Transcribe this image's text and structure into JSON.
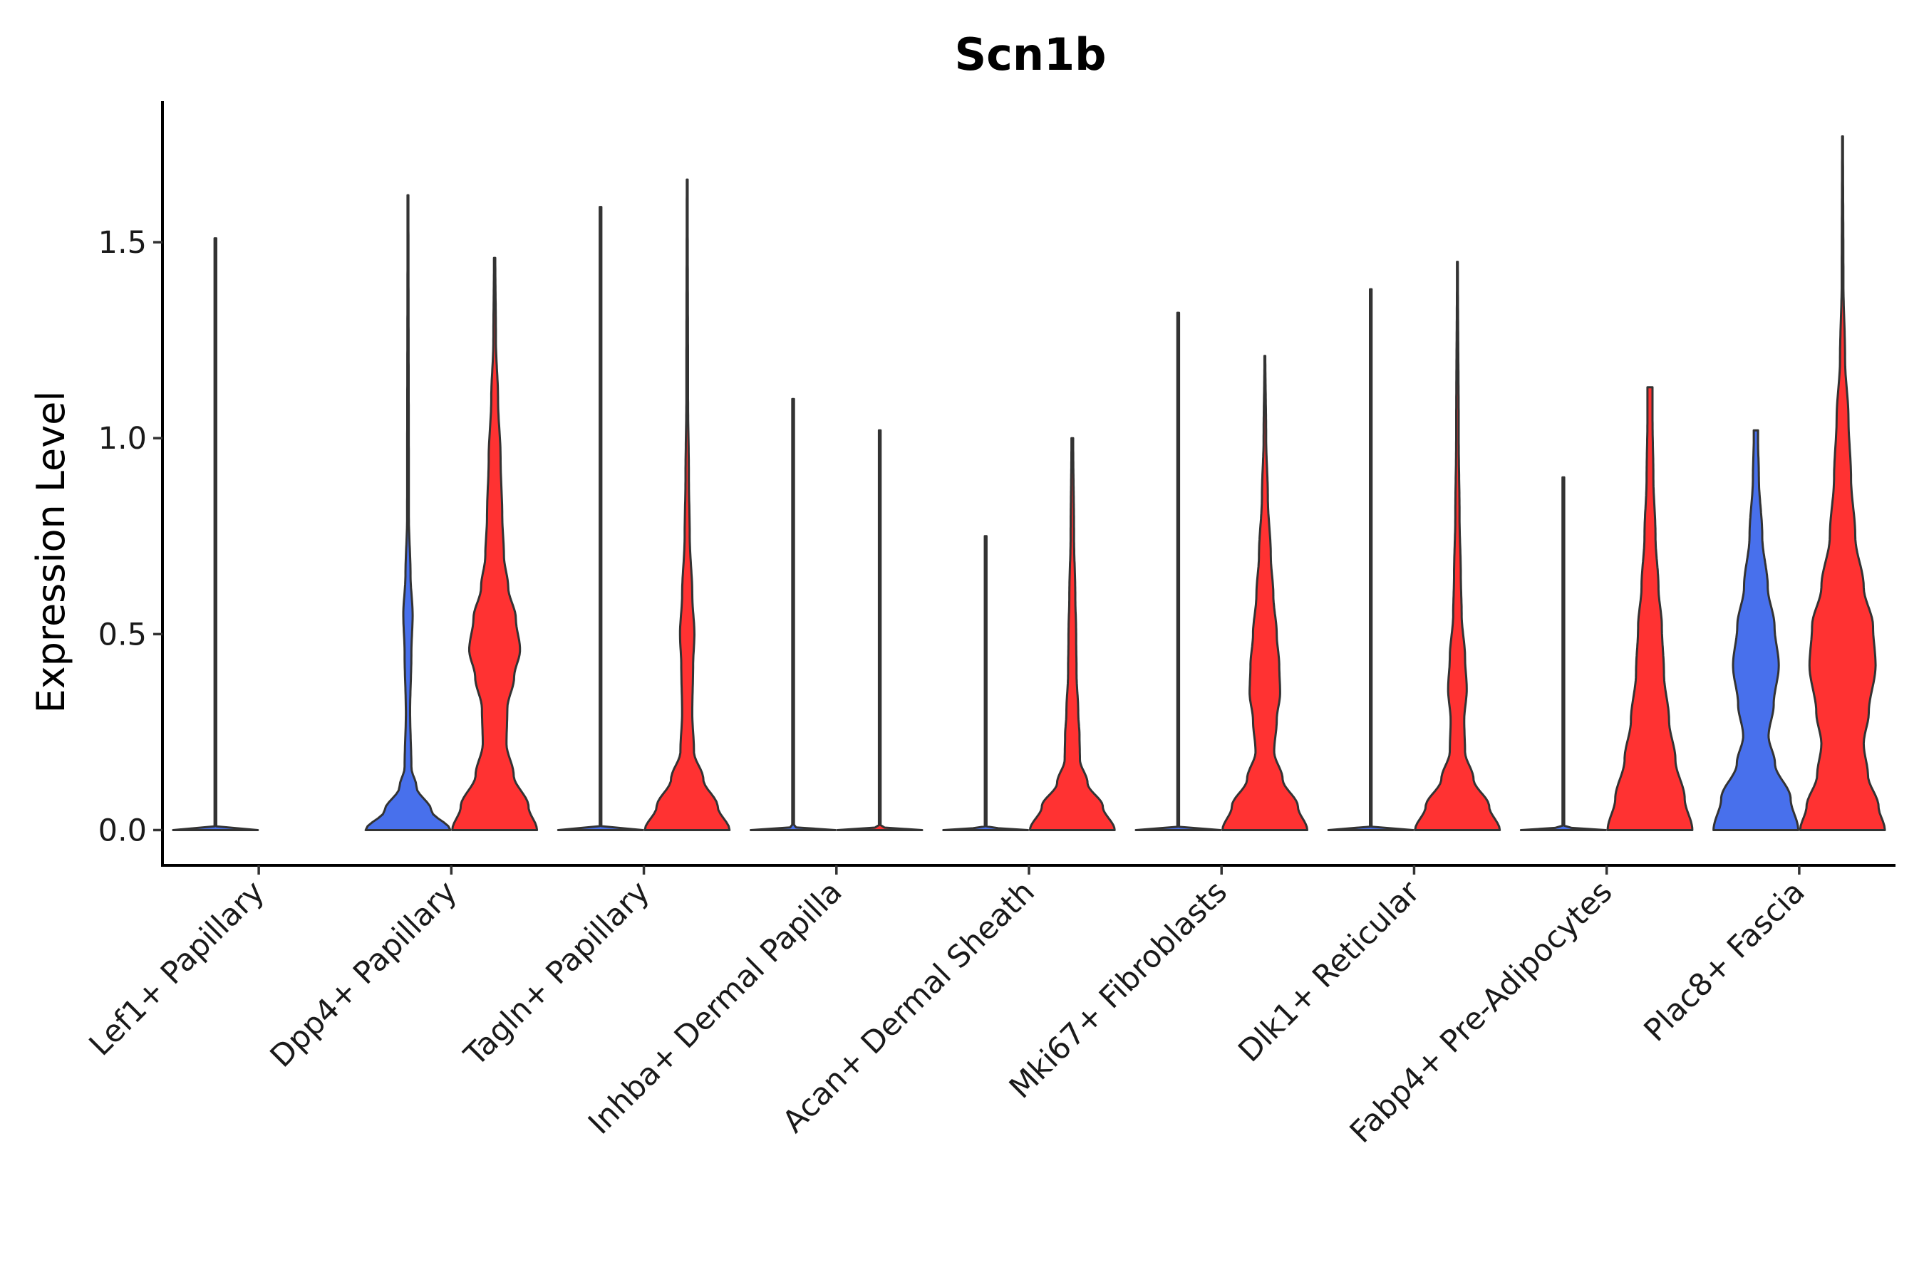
{
  "chart_data": {
    "type": "violin",
    "title": "Scn1b",
    "xlabel": "",
    "ylabel": "Expression Level",
    "ylim": [
      -0.09,
      1.86
    ],
    "yticks": [
      0.0,
      0.5,
      1.0,
      1.5
    ],
    "ytick_labels": [
      "0.0",
      "0.5",
      "1.0",
      "1.5"
    ],
    "colors": {
      "group_a": "#4870ec",
      "group_b": "#ff3232",
      "outline": "#333333"
    },
    "categories": [
      "Lef1+ Papillary",
      "Dpp4+ Papillary",
      "Tagln+ Papillary",
      "Inhba+ Dermal Papilla",
      "Acan+ Dermal Sheath",
      "Mki67+ Fibroblasts",
      "Dlk1+ Reticular",
      "Fabp4+ Pre-Adipocytes",
      "Plac8+ Fascia"
    ],
    "series": [
      {
        "name": "group_a",
        "color": "#4870ec",
        "violins": [
          {
            "max": 1.51,
            "profile": [
              [
                0.0,
                1.0
              ],
              [
                0.003,
                0.4
              ],
              [
                0.008,
                0.02
              ],
              [
                1.51,
                0.02
              ]
            ]
          },
          {
            "max": 1.62,
            "profile": [
              [
                0.0,
                1.0
              ],
              [
                0.05,
                0.55
              ],
              [
                0.11,
                0.2
              ],
              [
                0.16,
                0.08
              ],
              [
                0.3,
                0.05
              ],
              [
                0.45,
                0.08
              ],
              [
                0.55,
                0.11
              ],
              [
                0.65,
                0.06
              ],
              [
                0.8,
                0.02
              ],
              [
                1.62,
                0.01
              ]
            ]
          },
          {
            "max": 1.59,
            "profile": [
              [
                0.0,
                1.0
              ],
              [
                0.003,
                0.4
              ],
              [
                0.008,
                0.02
              ],
              [
                1.59,
                0.02
              ]
            ]
          },
          {
            "max": 1.1,
            "profile": [
              [
                0.0,
                1.0
              ],
              [
                0.003,
                0.4
              ],
              [
                0.008,
                0.02
              ],
              [
                1.1,
                0.02
              ]
            ]
          },
          {
            "max": 0.75,
            "profile": [
              [
                0.0,
                1.0
              ],
              [
                0.003,
                0.4
              ],
              [
                0.008,
                0.02
              ],
              [
                0.75,
                0.02
              ]
            ]
          },
          {
            "max": 1.32,
            "profile": [
              [
                0.0,
                1.0
              ],
              [
                0.003,
                0.4
              ],
              [
                0.008,
                0.02
              ],
              [
                1.32,
                0.02
              ]
            ]
          },
          {
            "max": 1.38,
            "profile": [
              [
                0.0,
                1.0
              ],
              [
                0.003,
                0.4
              ],
              [
                0.008,
                0.02
              ],
              [
                1.38,
                0.02
              ]
            ]
          },
          {
            "max": 0.9,
            "profile": [
              [
                0.0,
                1.0
              ],
              [
                0.003,
                0.4
              ],
              [
                0.008,
                0.02
              ],
              [
                0.9,
                0.02
              ]
            ]
          },
          {
            "max": 1.02,
            "profile": [
              [
                0.0,
                1.0
              ],
              [
                0.08,
                0.82
              ],
              [
                0.17,
                0.45
              ],
              [
                0.24,
                0.3
              ],
              [
                0.32,
                0.42
              ],
              [
                0.42,
                0.54
              ],
              [
                0.52,
                0.44
              ],
              [
                0.62,
                0.28
              ],
              [
                0.75,
                0.15
              ],
              [
                0.9,
                0.07
              ],
              [
                1.0,
                0.05
              ],
              [
                1.02,
                0.05
              ]
            ]
          }
        ]
      },
      {
        "name": "group_b",
        "color": "#ff3232",
        "violins": [
          {
            "max": 0.0,
            "profile": []
          },
          {
            "max": 1.46,
            "profile": [
              [
                0.0,
                1.0
              ],
              [
                0.06,
                0.8
              ],
              [
                0.14,
                0.45
              ],
              [
                0.22,
                0.28
              ],
              [
                0.31,
                0.3
              ],
              [
                0.39,
                0.46
              ],
              [
                0.46,
                0.6
              ],
              [
                0.54,
                0.5
              ],
              [
                0.62,
                0.32
              ],
              [
                0.7,
                0.22
              ],
              [
                0.8,
                0.18
              ],
              [
                0.95,
                0.14
              ],
              [
                1.1,
                0.08
              ],
              [
                1.25,
                0.03
              ],
              [
                1.46,
                0.015
              ]
            ]
          },
          {
            "max": 1.66,
            "profile": [
              [
                0.0,
                1.0
              ],
              [
                0.06,
                0.72
              ],
              [
                0.13,
                0.38
              ],
              [
                0.2,
                0.16
              ],
              [
                0.3,
                0.12
              ],
              [
                0.42,
                0.14
              ],
              [
                0.5,
                0.17
              ],
              [
                0.6,
                0.12
              ],
              [
                0.75,
                0.06
              ],
              [
                0.9,
                0.04
              ],
              [
                1.1,
                0.02
              ],
              [
                1.66,
                0.01
              ]
            ]
          },
          {
            "max": 1.02,
            "profile": [
              [
                0.0,
                1.0
              ],
              [
                0.003,
                0.4
              ],
              [
                0.008,
                0.02
              ],
              [
                1.02,
                0.02
              ]
            ]
          },
          {
            "max": 1.0,
            "profile": [
              [
                0.0,
                1.0
              ],
              [
                0.06,
                0.72
              ],
              [
                0.12,
                0.36
              ],
              [
                0.18,
                0.18
              ],
              [
                0.24,
                0.17
              ],
              [
                0.3,
                0.14
              ],
              [
                0.4,
                0.1
              ],
              [
                0.5,
                0.09
              ],
              [
                0.6,
                0.07
              ],
              [
                0.75,
                0.04
              ],
              [
                1.0,
                0.02
              ]
            ]
          },
          {
            "max": 1.21,
            "profile": [
              [
                0.0,
                1.0
              ],
              [
                0.06,
                0.78
              ],
              [
                0.13,
                0.42
              ],
              [
                0.2,
                0.22
              ],
              [
                0.28,
                0.28
              ],
              [
                0.35,
                0.36
              ],
              [
                0.42,
                0.34
              ],
              [
                0.5,
                0.28
              ],
              [
                0.6,
                0.2
              ],
              [
                0.7,
                0.14
              ],
              [
                0.85,
                0.07
              ],
              [
                1.0,
                0.03
              ],
              [
                1.21,
                0.01
              ]
            ]
          },
          {
            "max": 1.45,
            "profile": [
              [
                0.0,
                1.0
              ],
              [
                0.06,
                0.75
              ],
              [
                0.13,
                0.38
              ],
              [
                0.2,
                0.18
              ],
              [
                0.28,
                0.16
              ],
              [
                0.36,
                0.22
              ],
              [
                0.44,
                0.18
              ],
              [
                0.55,
                0.1
              ],
              [
                0.65,
                0.08
              ],
              [
                0.8,
                0.05
              ],
              [
                1.0,
                0.03
              ],
              [
                1.45,
                0.01
              ]
            ]
          },
          {
            "max": 1.13,
            "profile": [
              [
                0.0,
                1.0
              ],
              [
                0.08,
                0.82
              ],
              [
                0.18,
                0.6
              ],
              [
                0.28,
                0.45
              ],
              [
                0.4,
                0.33
              ],
              [
                0.52,
                0.28
              ],
              [
                0.62,
                0.2
              ],
              [
                0.75,
                0.13
              ],
              [
                0.9,
                0.08
              ],
              [
                1.05,
                0.06
              ],
              [
                1.13,
                0.06
              ]
            ]
          },
          {
            "max": 1.77,
            "profile": [
              [
                0.0,
                1.0
              ],
              [
                0.06,
                0.85
              ],
              [
                0.14,
                0.6
              ],
              [
                0.22,
                0.5
              ],
              [
                0.3,
                0.62
              ],
              [
                0.42,
                0.78
              ],
              [
                0.52,
                0.72
              ],
              [
                0.62,
                0.5
              ],
              [
                0.75,
                0.3
              ],
              [
                0.9,
                0.2
              ],
              [
                1.05,
                0.14
              ],
              [
                1.2,
                0.06
              ],
              [
                1.4,
                0.02
              ],
              [
                1.77,
                0.01
              ]
            ]
          }
        ]
      }
    ]
  }
}
